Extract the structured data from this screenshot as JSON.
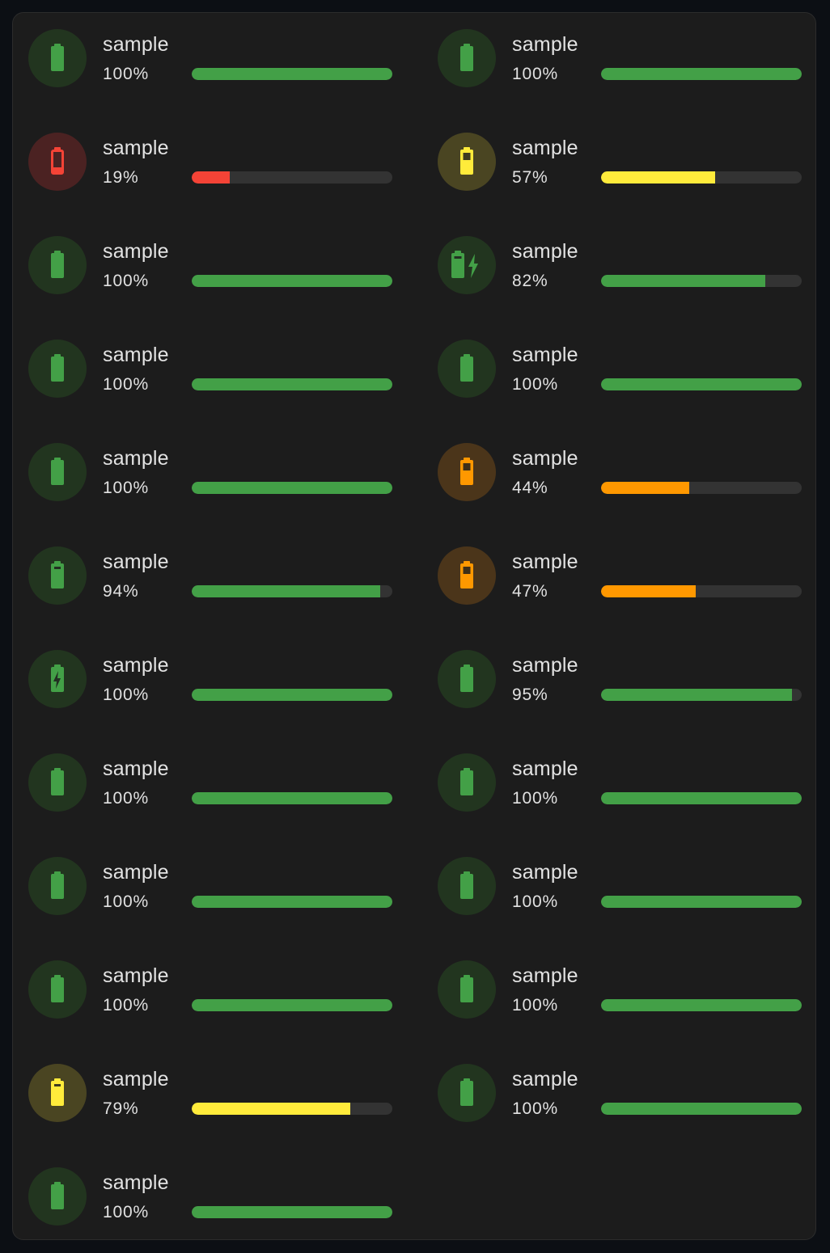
{
  "colors": {
    "green": "#43a047",
    "green_bg": "#22351f",
    "red": "#f44336",
    "red_bg": "#4b2222",
    "yellow": "#ffeb3b",
    "yellow_bg": "#4a4522",
    "orange": "#ff9800",
    "orange_bg": "#4b351a",
    "track": "#333333"
  },
  "entities": [
    {
      "name": "sample",
      "percent": "100%",
      "level": 100,
      "color": "green",
      "icon": "battery-full-icon"
    },
    {
      "name": "sample",
      "percent": "100%",
      "level": 100,
      "color": "green",
      "icon": "battery-full-icon"
    },
    {
      "name": "sample",
      "percent": "19%",
      "level": 19,
      "color": "red",
      "icon": "battery-low-icon"
    },
    {
      "name": "sample",
      "percent": "57%",
      "level": 57,
      "color": "yellow",
      "icon": "battery-medium-icon"
    },
    {
      "name": "sample",
      "percent": "100%",
      "level": 100,
      "color": "green",
      "icon": "battery-full-icon"
    },
    {
      "name": "sample",
      "percent": "82%",
      "level": 82,
      "color": "green",
      "icon": "battery-charging-icon"
    },
    {
      "name": "sample",
      "percent": "100%",
      "level": 100,
      "color": "green",
      "icon": "battery-full-icon"
    },
    {
      "name": "sample",
      "percent": "100%",
      "level": 100,
      "color": "green",
      "icon": "battery-full-icon"
    },
    {
      "name": "sample",
      "percent": "100%",
      "level": 100,
      "color": "green",
      "icon": "battery-full-icon"
    },
    {
      "name": "sample",
      "percent": "44%",
      "level": 44,
      "color": "orange",
      "icon": "battery-medium-icon"
    },
    {
      "name": "sample",
      "percent": "94%",
      "level": 94,
      "color": "green",
      "icon": "battery-high-icon"
    },
    {
      "name": "sample",
      "percent": "47%",
      "level": 47,
      "color": "orange",
      "icon": "battery-medium-icon"
    },
    {
      "name": "sample",
      "percent": "100%",
      "level": 100,
      "color": "green",
      "icon": "battery-bolt-icon"
    },
    {
      "name": "sample",
      "percent": "95%",
      "level": 95,
      "color": "green",
      "icon": "battery-full-icon"
    },
    {
      "name": "sample",
      "percent": "100%",
      "level": 100,
      "color": "green",
      "icon": "battery-full-icon"
    },
    {
      "name": "sample",
      "percent": "100%",
      "level": 100,
      "color": "green",
      "icon": "battery-full-icon"
    },
    {
      "name": "sample",
      "percent": "100%",
      "level": 100,
      "color": "green",
      "icon": "battery-full-icon"
    },
    {
      "name": "sample",
      "percent": "100%",
      "level": 100,
      "color": "green",
      "icon": "battery-full-icon"
    },
    {
      "name": "sample",
      "percent": "100%",
      "level": 100,
      "color": "green",
      "icon": "battery-full-icon"
    },
    {
      "name": "sample",
      "percent": "100%",
      "level": 100,
      "color": "green",
      "icon": "battery-full-icon"
    },
    {
      "name": "sample",
      "percent": "79%",
      "level": 79,
      "color": "yellow",
      "icon": "battery-high-icon"
    },
    {
      "name": "sample",
      "percent": "100%",
      "level": 100,
      "color": "green",
      "icon": "battery-full-icon"
    },
    {
      "name": "sample",
      "percent": "100%",
      "level": 100,
      "color": "green",
      "icon": "battery-full-icon"
    }
  ]
}
